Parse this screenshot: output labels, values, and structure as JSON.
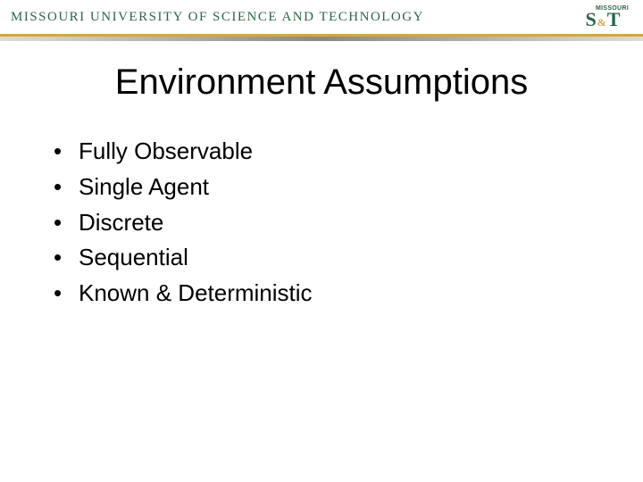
{
  "header": {
    "university_name": "MISSOURI UNIVERSITY OF SCIENCE AND TECHNOLOGY",
    "logo_small_text": "MISSOURI",
    "logo_s": "S",
    "logo_amp": "&",
    "logo_t": "T",
    "colors": {
      "brand_green": "#2a6648",
      "brand_gold": "#d9a441",
      "rule_gray_mid": "#888888",
      "rule_gray_edge": "#dcdcdc",
      "background": "#ffffff",
      "text": "#000000"
    }
  },
  "slide": {
    "title": "Environment Assumptions",
    "title_fontsize": 40,
    "bullet_fontsize": 26,
    "bullets": [
      "Fully Observable",
      "Single Agent",
      "Discrete",
      "Sequential",
      "Known & Deterministic"
    ]
  }
}
